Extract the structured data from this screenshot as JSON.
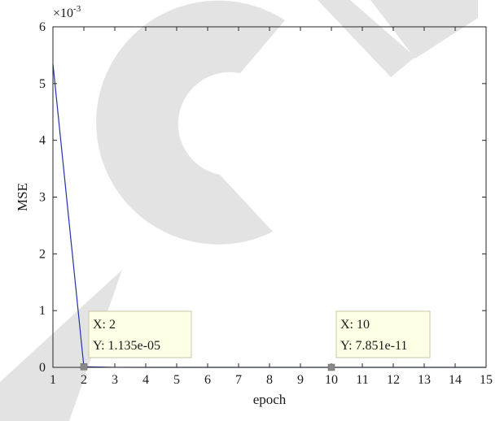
{
  "chart_data": {
    "type": "line",
    "xlabel": "epoch",
    "ylabel": "MSE",
    "y_exponent_label": "×10-3",
    "xlim": [
      1,
      15
    ],
    "ylim": [
      0,
      0.006
    ],
    "x_ticks": [
      1,
      2,
      3,
      4,
      5,
      6,
      7,
      8,
      9,
      10,
      11,
      12,
      13,
      14,
      15
    ],
    "y_ticks": [
      0,
      1,
      2,
      3,
      4,
      5,
      6
    ],
    "grid": false,
    "series": [
      {
        "color": "#2233aa",
        "x": [
          1,
          2,
          3,
          4,
          5,
          6,
          7,
          8,
          9,
          10,
          11,
          12,
          13,
          14,
          15
        ],
        "y": [
          0.00535,
          1.135e-05,
          1e-06,
          1e-07,
          1e-08,
          5e-09,
          1e-09,
          5e-10,
          2e-10,
          7.851e-11,
          5e-11,
          3e-11,
          2e-11,
          1e-11,
          1e-11
        ]
      }
    ],
    "datatips": [
      {
        "x": 2,
        "y": 1.135e-05,
        "x_text": "X: 2",
        "y_text": "Y: 1.135e-05"
      },
      {
        "x": 10,
        "y": 7.851e-11,
        "x_text": "X: 10",
        "y_text": "Y: 7.851e-11"
      }
    ],
    "watermark": "ARTICLE",
    "colors": {
      "line": "#2233aa",
      "watermark": "#e3e3e3",
      "datatip_bg": "#ffffe6",
      "datatip_border": "#c7c7a6",
      "marker": "#888888"
    }
  }
}
